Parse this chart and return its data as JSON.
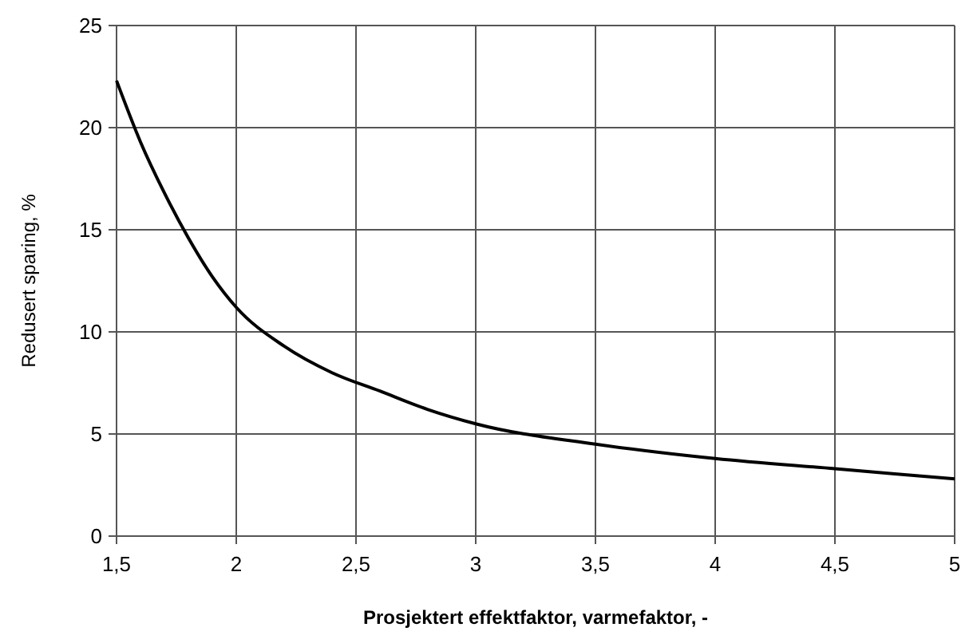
{
  "chart_data": {
    "type": "line",
    "xlabel": "Prosjektert effektfaktor, varmefaktor, -",
    "ylabel": "Redusert sparing, %",
    "xlim": [
      1.5,
      5
    ],
    "xticks": [
      {
        "value": 1.5,
        "label": "1,5"
      },
      2,
      {
        "value": 2.5,
        "label": "2,5"
      },
      3,
      {
        "value": 3.5,
        "label": "3,5"
      },
      4,
      {
        "value": 4.5,
        "label": "4,5"
      },
      5
    ],
    "ylim": [
      0,
      25
    ],
    "yticks": [
      0,
      5,
      10,
      15,
      20,
      25
    ],
    "grid": true,
    "marker": "none",
    "line_style": "solid",
    "series": [
      {
        "color": "#000000",
        "x": [
          1.5,
          1.6,
          1.7,
          1.8,
          1.9,
          2,
          2.2,
          2.4,
          2.6,
          2.8,
          3,
          3.5,
          4,
          4.5,
          5
        ],
        "values": [
          22.3,
          19.3,
          16.8,
          14.6,
          12.7,
          11.2,
          9.3,
          8.0,
          7.1,
          6.2,
          5.5,
          4.5,
          3.8,
          3.3,
          2.8
        ]
      }
    ]
  }
}
